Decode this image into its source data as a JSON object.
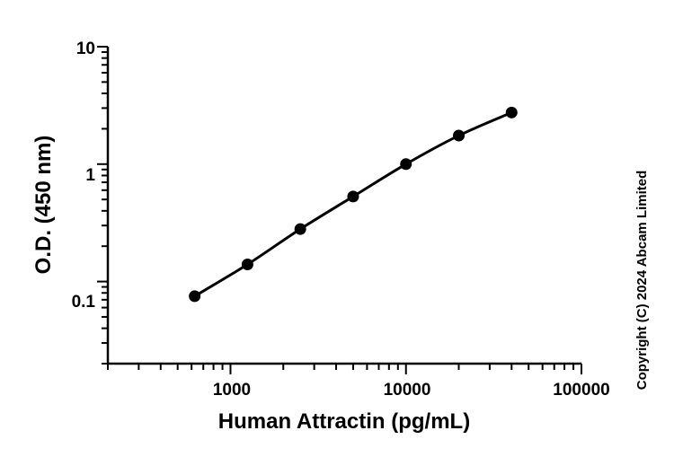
{
  "chart_data": {
    "type": "scatter",
    "title": "",
    "xlabel": "Human Attractin (pg/mL)",
    "ylabel": "O.D. (450 nm)",
    "x_scale": "log",
    "y_scale": "log",
    "xlim": [
      200,
      100000
    ],
    "ylim": [
      0.02,
      10
    ],
    "x_tick_labels": [
      "1000",
      "10000",
      "100000"
    ],
    "y_tick_labels": [
      "0.1",
      "1",
      "10"
    ],
    "grid": false,
    "legend": "none",
    "series": [
      {
        "x": [
          625,
          1250,
          2500,
          5000,
          10000,
          20000,
          40000
        ],
        "y": [
          0.075,
          0.14,
          0.28,
          0.53,
          1.0,
          1.75,
          2.75
        ],
        "fit_curve": true
      }
    ],
    "marker_color": "#000000"
  },
  "copyright": "Copyright (C) 2024 Abcam Limited"
}
